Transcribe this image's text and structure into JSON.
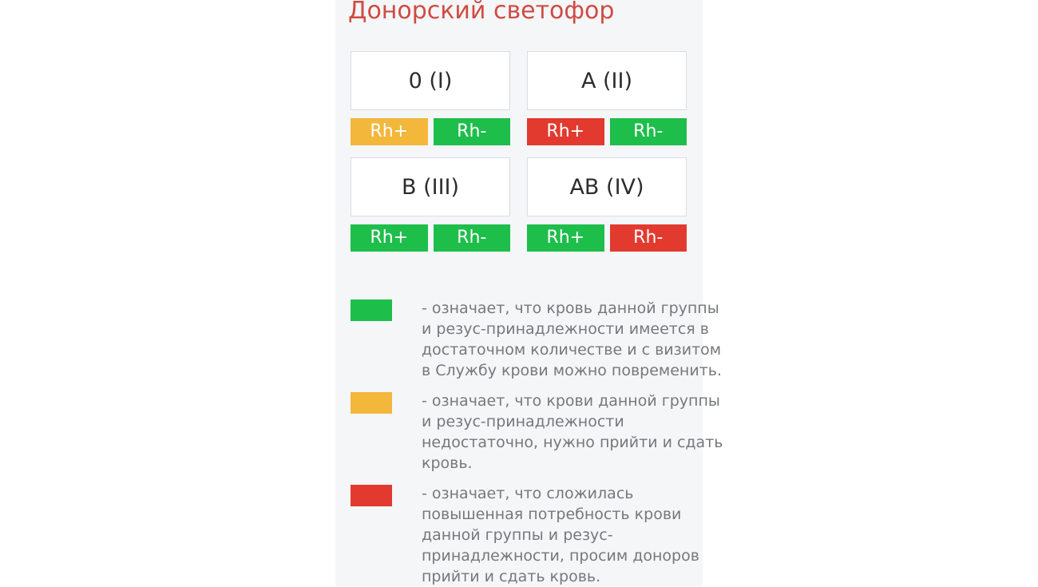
{
  "title": "Донорский светофор",
  "colors": {
    "green": "#1ebe4a",
    "yellow": "#f3b73c",
    "red": "#e23a2f",
    "title-red": "#d04b42",
    "panel-bg": "#f4f6f8",
    "legend-text": "#76787b"
  },
  "groups": [
    {
      "label": "0 (I)",
      "rh_plus_label": "Rh+",
      "rh_plus_status": "yellow",
      "rh_minus_label": "Rh-",
      "rh_minus_status": "green"
    },
    {
      "label": "A (II)",
      "rh_plus_label": "Rh+",
      "rh_plus_status": "red",
      "rh_minus_label": "Rh-",
      "rh_minus_status": "green"
    },
    {
      "label": "B (III)",
      "rh_plus_label": "Rh+",
      "rh_plus_status": "green",
      "rh_minus_label": "Rh-",
      "rh_minus_status": "green"
    },
    {
      "label": "AB (IV)",
      "rh_plus_label": "Rh+",
      "rh_plus_status": "green",
      "rh_minus_label": "Rh-",
      "rh_minus_status": "red"
    }
  ],
  "legend": [
    {
      "color": "green",
      "text": "- означает, что кровь данной группы\nи резус-принадлежности имеется в\nдостаточном количестве и с визитом\nв Службу крови можно повременить."
    },
    {
      "color": "yellow",
      "text": "- означает, что крови данной группы\nи резус-принадлежности\nнедостаточно, нужно прийти и сдать\nкровь."
    },
    {
      "color": "red",
      "text": "- означает, что сложилась\nповышенная потребность крови\nданной группы и резус-\nпринадлежности, просим доноров\nприйти и сдать кровь."
    }
  ]
}
